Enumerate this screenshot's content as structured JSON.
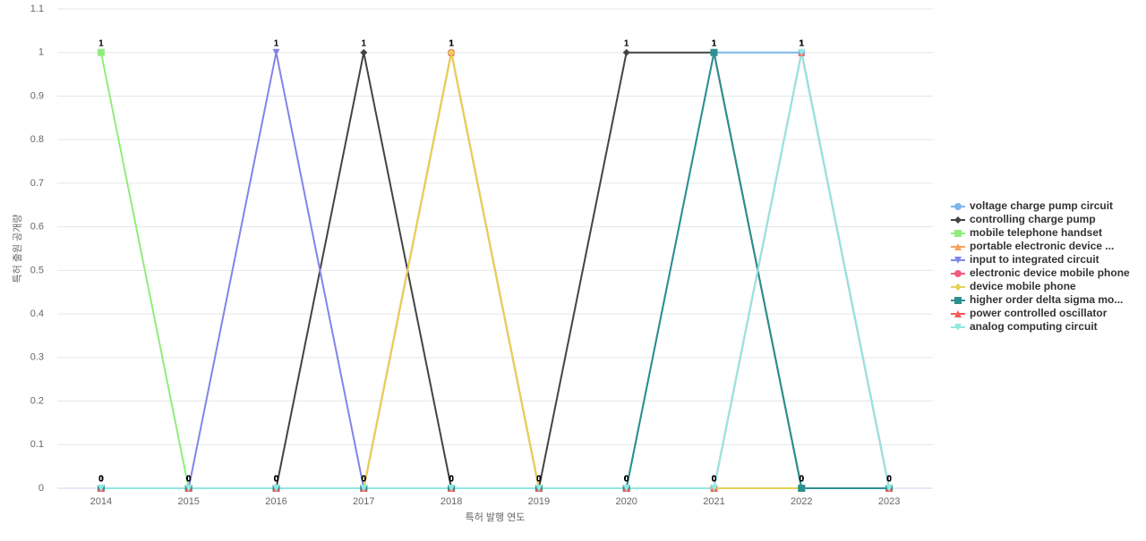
{
  "chart_data": {
    "type": "line",
    "x_label": "특허 발행 연도",
    "y_label": "특허 출원 공개량",
    "categories": [
      "2014",
      "2015",
      "2016",
      "2017",
      "2018",
      "2019",
      "2020",
      "2021",
      "2022",
      "2023"
    ],
    "ylim": [
      0,
      1.1
    ],
    "yticks": [
      0,
      0.1,
      0.2,
      0.3,
      0.4,
      0.5,
      0.6,
      0.7,
      0.8,
      0.9,
      1,
      1.1
    ],
    "grid": true,
    "legend": "right",
    "series": [
      {
        "name": "voltage charge pump circuit",
        "color": "#7cb5ec",
        "marker": "circle",
        "values": [
          0,
          0,
          0,
          0,
          0,
          0,
          0,
          1,
          1,
          0
        ]
      },
      {
        "name": "controlling charge pump",
        "color": "#434348",
        "marker": "diamond",
        "values": [
          0,
          0,
          0,
          1,
          0,
          0,
          1,
          1,
          0,
          0
        ]
      },
      {
        "name": "mobile telephone handset",
        "color": "#90ed7d",
        "marker": "square",
        "values": [
          1,
          0,
          0,
          0,
          0,
          0,
          0,
          0,
          0,
          0
        ]
      },
      {
        "name": "portable electronic device ...",
        "color": "#f7a35c",
        "marker": "triangle",
        "values": [
          0,
          0,
          0,
          0,
          1,
          0,
          0,
          0,
          0,
          0
        ]
      },
      {
        "name": "input to integrated circuit",
        "color": "#8085e9",
        "marker": "triangle-down",
        "values": [
          0,
          0,
          1,
          0,
          0,
          0,
          0,
          0,
          0,
          0
        ]
      },
      {
        "name": "electronic device mobile phone",
        "color": "#f15c80",
        "marker": "circle",
        "values": [
          0,
          0,
          0,
          0,
          1,
          0,
          0,
          0,
          0,
          0
        ]
      },
      {
        "name": "device mobile phone",
        "color": "#e4d354",
        "marker": "diamond",
        "values": [
          0,
          0,
          0,
          0,
          1,
          0,
          0,
          0,
          0,
          0
        ]
      },
      {
        "name": "higher order delta sigma mo...",
        "color": "#2b908f",
        "marker": "square",
        "values": [
          0,
          0,
          0,
          0,
          0,
          0,
          0,
          1,
          0,
          0
        ]
      },
      {
        "name": "power controlled oscillator",
        "color": "#f45b5b",
        "marker": "triangle",
        "values": [
          0,
          0,
          0,
          0,
          0,
          0,
          0,
          0,
          1,
          0
        ]
      },
      {
        "name": "analog computing circuit",
        "color": "#91e8e1",
        "marker": "triangle-down",
        "values": [
          0,
          0,
          0,
          0,
          0,
          0,
          0,
          0,
          1,
          0
        ]
      }
    ]
  }
}
